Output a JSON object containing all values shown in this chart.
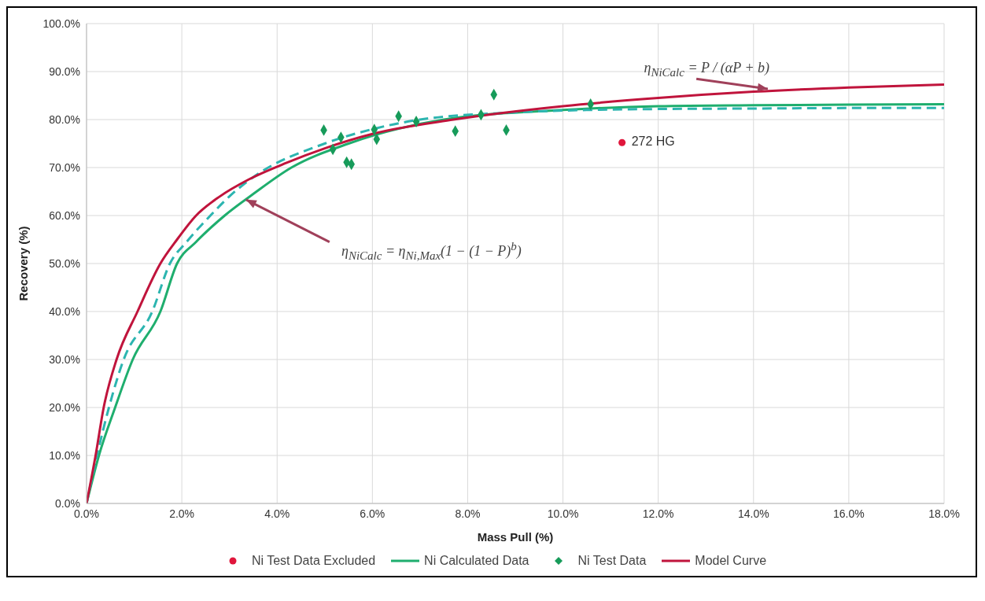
{
  "chart_data": {
    "type": "line",
    "xlabel": "Mass Pull (%)",
    "ylabel": "Recovery (%)",
    "xlim": [
      0,
      18
    ],
    "ylim": [
      0,
      100
    ],
    "xticks": [
      {
        "value": 0,
        "label": "0.0%"
      },
      {
        "value": 2,
        "label": "2.0%"
      },
      {
        "value": 4,
        "label": "4.0%"
      },
      {
        "value": 6,
        "label": "6.0%"
      },
      {
        "value": 8,
        "label": "8.0%"
      },
      {
        "value": 10,
        "label": "10.0%"
      },
      {
        "value": 12,
        "label": "12.0%"
      },
      {
        "value": 14,
        "label": "14.0%"
      },
      {
        "value": 16,
        "label": "16.0%"
      },
      {
        "value": 18,
        "label": "18.0%"
      }
    ],
    "yticks": [
      {
        "value": 0,
        "label": "0.0%"
      },
      {
        "value": 10,
        "label": "10.0%"
      },
      {
        "value": 20,
        "label": "20.0%"
      },
      {
        "value": 30,
        "label": "30.0%"
      },
      {
        "value": 40,
        "label": "40.0%"
      },
      {
        "value": 50,
        "label": "50.0%"
      },
      {
        "value": 60,
        "label": "60.0%"
      },
      {
        "value": 70,
        "label": "70.0%"
      },
      {
        "value": 80,
        "label": "80.0%"
      },
      {
        "value": 90,
        "label": "90.0%"
      },
      {
        "value": 100,
        "label": "100.0%"
      }
    ],
    "grid": true,
    "legend": "bottom",
    "series": [
      {
        "name": "Ni Test Data Excluded",
        "type": "scatter",
        "marker": "circle",
        "color": "#e0163c",
        "x": [
          11.24
        ],
        "values": [
          75.2
        ]
      },
      {
        "name": "Ni Calculated Data",
        "line_style": "solid",
        "color": "#1fae6e",
        "x": [
          0,
          0.26,
          0.6,
          0.97,
          1.55,
          1.9,
          2.3,
          2.9,
          3.5,
          4.3,
          5.5,
          7.5,
          10,
          12,
          14,
          16,
          18
        ],
        "values": [
          0,
          10,
          20,
          30,
          40,
          50,
          54.5,
          60,
          64.5,
          70,
          75,
          80,
          82,
          82.8,
          83,
          83.1,
          83.2
        ]
      },
      {
        "name": "Ni Test Data",
        "type": "scatter",
        "marker": "diamond",
        "color": "#179b5a",
        "x": [
          4.98,
          5.17,
          5.34,
          5.46,
          5.56,
          6.04,
          6.09,
          6.55,
          6.92,
          7.74,
          8.28,
          8.55,
          8.81,
          10.58
        ],
        "values": [
          77.8,
          73.8,
          76.3,
          71.1,
          70.7,
          77.9,
          75.9,
          80.7,
          79.6,
          77.6,
          81,
          85.2,
          77.8,
          83.2
        ]
      },
      {
        "line_style": "dashed",
        "color": "#2cb5b0",
        "x": [
          0,
          0.22,
          0.47,
          0.78,
          1.38,
          1.75,
          2.1,
          2.6,
          3.0,
          3.5,
          5,
          6,
          7,
          9,
          10.5,
          12,
          14,
          16,
          18
        ],
        "values": [
          0,
          10,
          20,
          30,
          40,
          50,
          54.5,
          60,
          64,
          68,
          75,
          78,
          80,
          81.5,
          82,
          82.2,
          82.3,
          82.4,
          82.4
        ]
      },
      {
        "name": "Model Curve",
        "line_style": "solid",
        "color": "#c0143c",
        "x": [
          0,
          0.19,
          0.36,
          0.63,
          1.07,
          1.55,
          1.9,
          2.3,
          2.8,
          3.4,
          4.2,
          5,
          6,
          7.7,
          10,
          12,
          14,
          16,
          18
        ],
        "values": [
          0,
          10,
          20,
          30,
          40,
          50,
          55,
          60,
          64,
          67.5,
          71,
          74,
          77,
          80,
          82.8,
          84.5,
          85.8,
          86.7,
          87.3
        ]
      }
    ],
    "annotations": [
      {
        "text": "η$_{NiCalc}$ = P / (αP + b)",
        "x": 14.3,
        "y": 86.4
      },
      {
        "text": "η$_{NiCalc}$ = η$_{Ni,Max}$(1 − (1 − P)$^{b}$)",
        "x": 3.35,
        "y": 63.3
      },
      {
        "text": "272 HG",
        "x": 11.24,
        "y": 75.2
      }
    ]
  }
}
